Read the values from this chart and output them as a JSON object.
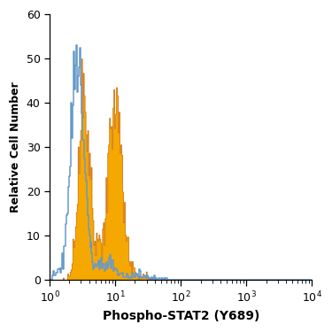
{
  "title": "",
  "xlabel": "Phospho-STAT2 (Y689)",
  "ylabel": "Relative Cell Number",
  "xlim": [
    1,
    10000
  ],
  "ylim": [
    0,
    60
  ],
  "yticks": [
    0,
    10,
    20,
    30,
    40,
    50,
    60
  ],
  "background_color": "#ffffff",
  "blue_color": "#6699cc",
  "orange_fill_color": "#f5a800",
  "orange_line_color": "#cc6600",
  "blue_peak_log": 0.42,
  "blue_peak_y": 53,
  "orange_peak1_log": 0.52,
  "orange_peak1_y": 50,
  "orange_peak2_log": 1.0,
  "orange_peak2_y": 45,
  "blue_sigma1": 0.1,
  "blue_sigma2": 0.13,
  "orange_sigma1": 0.085,
  "orange_sigma2": 0.095
}
